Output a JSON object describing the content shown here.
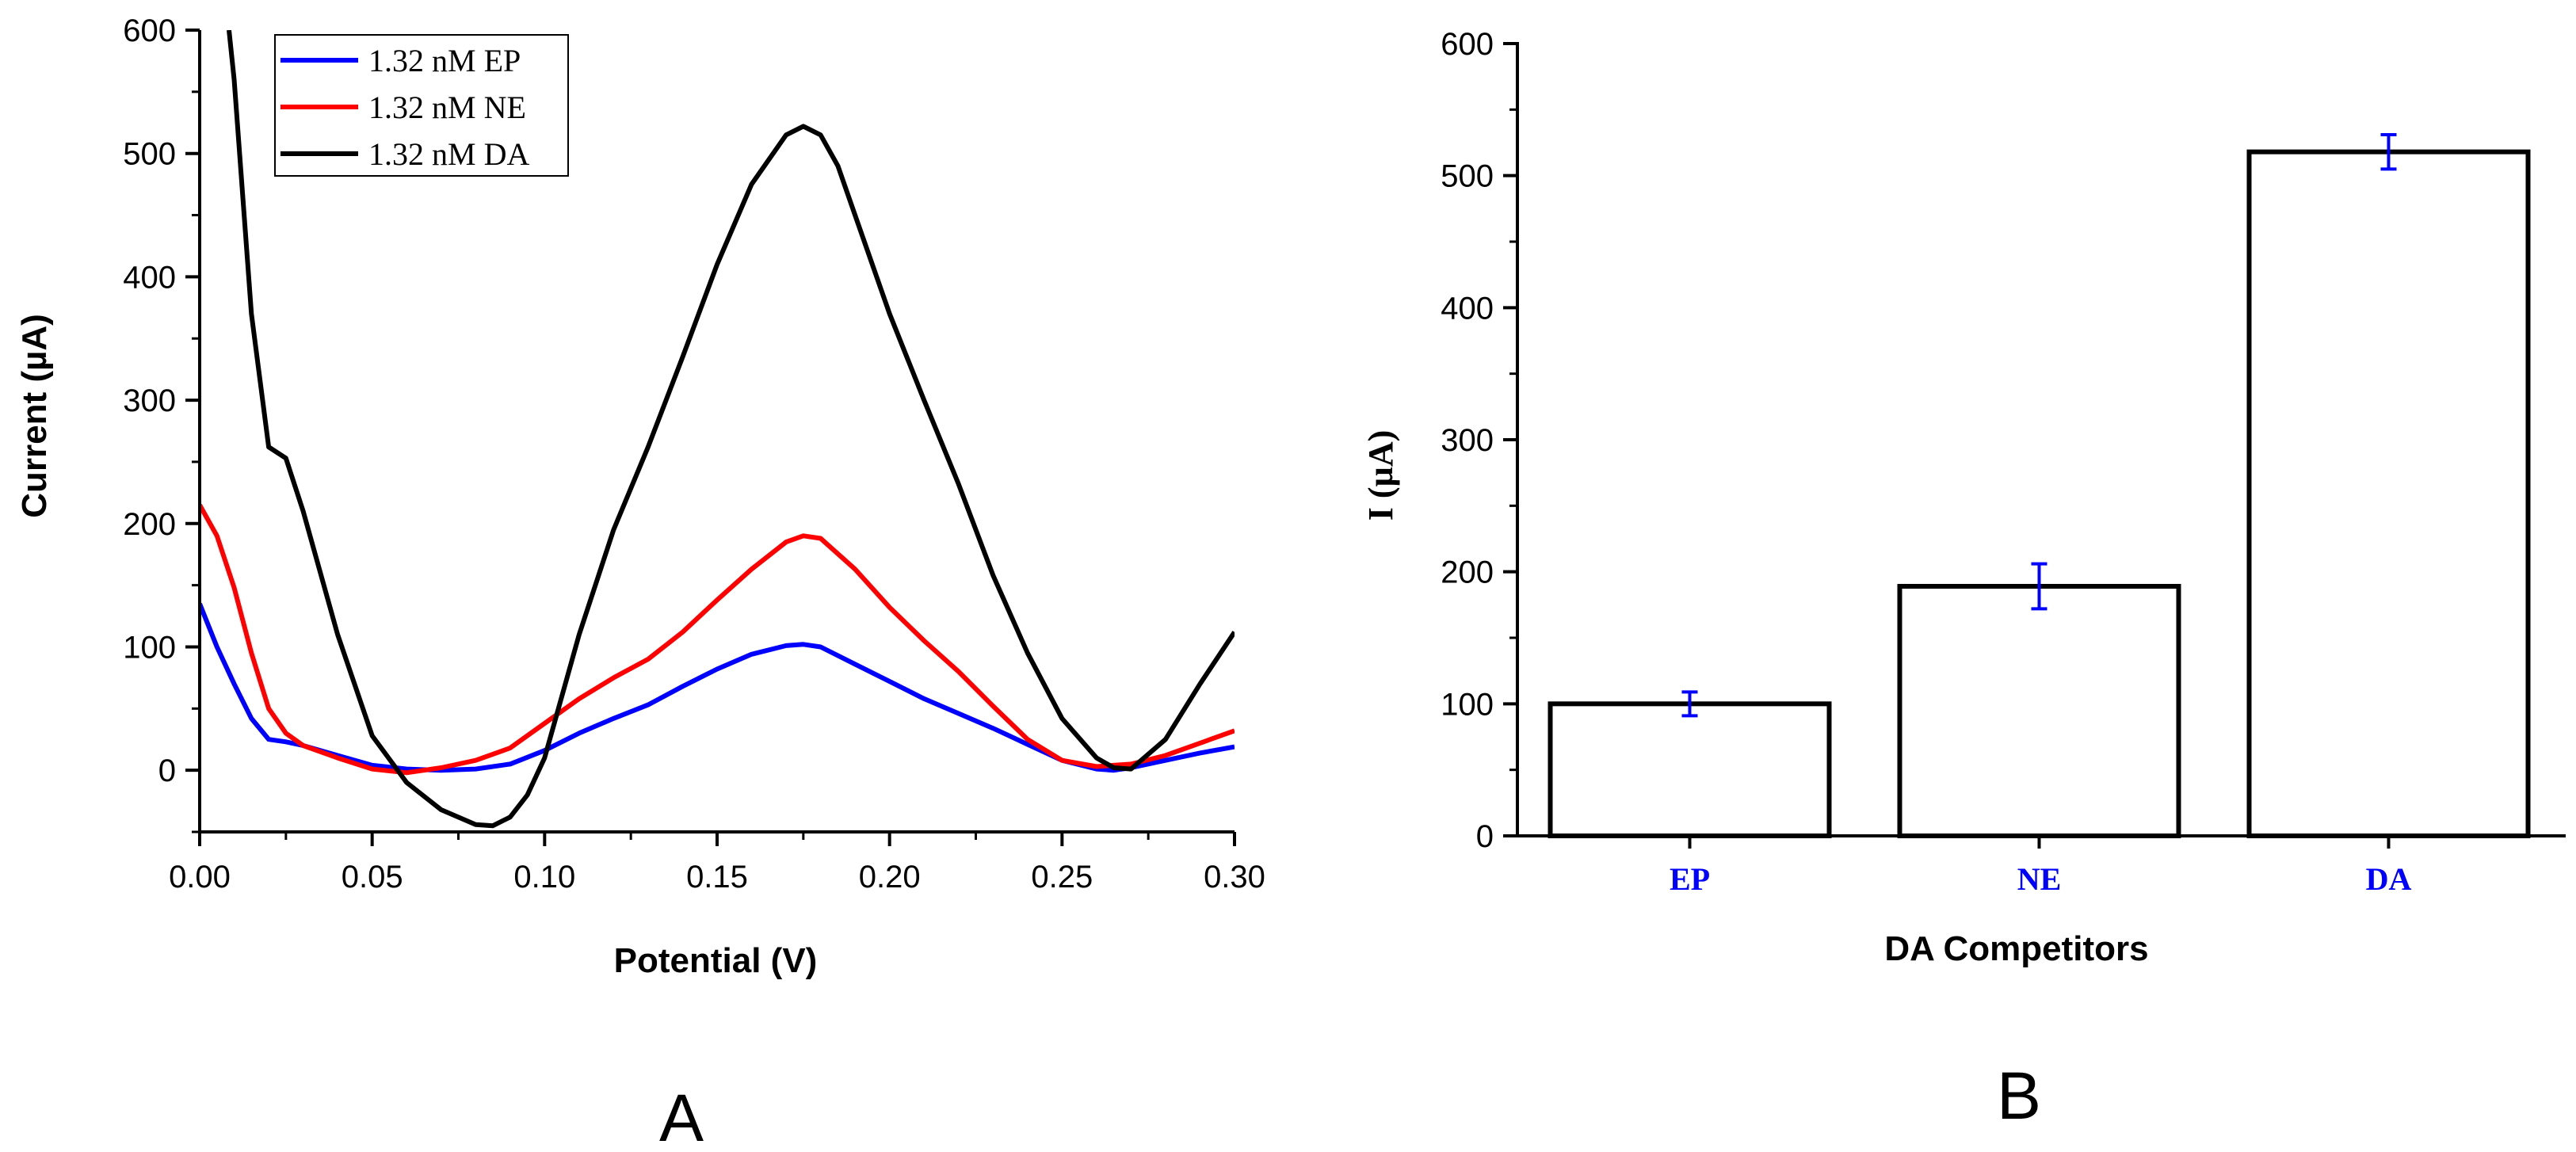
{
  "chart_data": [
    {
      "panel": "A",
      "type": "line",
      "xlabel": "Potential (V)",
      "ylabel": "Current (µA)",
      "xlim": [
        0,
        0.3
      ],
      "ylim": [
        -50,
        600
      ],
      "xticks": [
        0.0,
        0.05,
        0.1,
        0.15,
        0.2,
        0.25,
        0.3
      ],
      "xtick_labels": [
        "0.00",
        "0.05",
        "0.10",
        "0.15",
        "0.20",
        "0.25",
        "0.30"
      ],
      "yticks": [
        0,
        100,
        200,
        300,
        400,
        500,
        600
      ],
      "ytick_labels": [
        "0",
        "100",
        "200",
        "300",
        "400",
        "500",
        "600"
      ],
      "legend_position": "top-left",
      "series": [
        {
          "name": "1.32 nM EP",
          "color": "#0000ff",
          "points": [
            [
              0.0,
              135
            ],
            [
              0.005,
              100
            ],
            [
              0.01,
              70
            ],
            [
              0.015,
              42
            ],
            [
              0.02,
              25
            ],
            [
              0.025,
              23
            ],
            [
              0.03,
              20
            ],
            [
              0.04,
              12
            ],
            [
              0.05,
              4
            ],
            [
              0.06,
              1
            ],
            [
              0.07,
              0
            ],
            [
              0.08,
              1
            ],
            [
              0.09,
              5
            ],
            [
              0.1,
              16
            ],
            [
              0.11,
              30
            ],
            [
              0.12,
              42
            ],
            [
              0.13,
              53
            ],
            [
              0.14,
              68
            ],
            [
              0.15,
              82
            ],
            [
              0.16,
              94
            ],
            [
              0.17,
              101
            ],
            [
              0.175,
              102
            ],
            [
              0.18,
              100
            ],
            [
              0.19,
              86
            ],
            [
              0.2,
              72
            ],
            [
              0.21,
              58
            ],
            [
              0.22,
              46
            ],
            [
              0.23,
              34
            ],
            [
              0.24,
              21
            ],
            [
              0.25,
              8
            ],
            [
              0.26,
              1
            ],
            [
              0.265,
              0
            ],
            [
              0.27,
              2
            ],
            [
              0.28,
              8
            ],
            [
              0.29,
              14
            ],
            [
              0.3,
              19
            ]
          ]
        },
        {
          "name": "1.32 nM NE",
          "color": "#ff0000",
          "points": [
            [
              0.0,
              215
            ],
            [
              0.005,
              190
            ],
            [
              0.01,
              148
            ],
            [
              0.015,
              95
            ],
            [
              0.02,
              50
            ],
            [
              0.025,
              30
            ],
            [
              0.03,
              20
            ],
            [
              0.04,
              10
            ],
            [
              0.05,
              1
            ],
            [
              0.06,
              -2
            ],
            [
              0.07,
              2
            ],
            [
              0.08,
              8
            ],
            [
              0.09,
              18
            ],
            [
              0.1,
              38
            ],
            [
              0.11,
              58
            ],
            [
              0.12,
              75
            ],
            [
              0.13,
              90
            ],
            [
              0.14,
              112
            ],
            [
              0.15,
              138
            ],
            [
              0.16,
              163
            ],
            [
              0.17,
              185
            ],
            [
              0.175,
              190
            ],
            [
              0.18,
              188
            ],
            [
              0.19,
              163
            ],
            [
              0.2,
              132
            ],
            [
              0.21,
              105
            ],
            [
              0.22,
              80
            ],
            [
              0.23,
              52
            ],
            [
              0.24,
              25
            ],
            [
              0.25,
              8
            ],
            [
              0.26,
              3
            ],
            [
              0.265,
              4
            ],
            [
              0.27,
              5
            ],
            [
              0.28,
              12
            ],
            [
              0.29,
              22
            ],
            [
              0.3,
              32
            ]
          ]
        },
        {
          "name": "1.32 nM DA",
          "color": "#000000",
          "points": [
            [
              0.0085,
              600
            ],
            [
              0.01,
              560
            ],
            [
              0.015,
              370
            ],
            [
              0.02,
              262
            ],
            [
              0.025,
              253
            ],
            [
              0.03,
              210
            ],
            [
              0.04,
              110
            ],
            [
              0.05,
              28
            ],
            [
              0.06,
              -10
            ],
            [
              0.07,
              -32
            ],
            [
              0.08,
              -44
            ],
            [
              0.085,
              -45
            ],
            [
              0.09,
              -38
            ],
            [
              0.095,
              -20
            ],
            [
              0.1,
              10
            ],
            [
              0.11,
              110
            ],
            [
              0.12,
              195
            ],
            [
              0.13,
              262
            ],
            [
              0.14,
              335
            ],
            [
              0.15,
              410
            ],
            [
              0.16,
              475
            ],
            [
              0.17,
              515
            ],
            [
              0.175,
              522
            ],
            [
              0.18,
              515
            ],
            [
              0.185,
              490
            ],
            [
              0.19,
              450
            ],
            [
              0.2,
              370
            ],
            [
              0.21,
              300
            ],
            [
              0.22,
              232
            ],
            [
              0.23,
              158
            ],
            [
              0.24,
              95
            ],
            [
              0.25,
              42
            ],
            [
              0.26,
              10
            ],
            [
              0.265,
              2
            ],
            [
              0.27,
              1
            ],
            [
              0.28,
              25
            ],
            [
              0.29,
              70
            ],
            [
              0.3,
              112
            ]
          ]
        }
      ]
    },
    {
      "panel": "B",
      "type": "bar",
      "xlabel": "DA Competitors",
      "ylabel": "I (µA)",
      "ylim": [
        0,
        600
      ],
      "yticks": [
        0,
        100,
        200,
        300,
        400,
        500,
        600
      ],
      "ytick_labels": [
        "0",
        "100",
        "200",
        "300",
        "400",
        "500",
        "600"
      ],
      "categories": [
        "EP",
        "NE",
        "DA"
      ],
      "values": [
        100,
        189,
        518
      ],
      "errors": [
        9,
        17,
        13
      ],
      "bar_fill": "#ffffff",
      "bar_edge": "#000000",
      "error_color": "#0000ff",
      "category_label_color": "#0000ff"
    }
  ],
  "panel_labels": [
    "A",
    "B"
  ]
}
